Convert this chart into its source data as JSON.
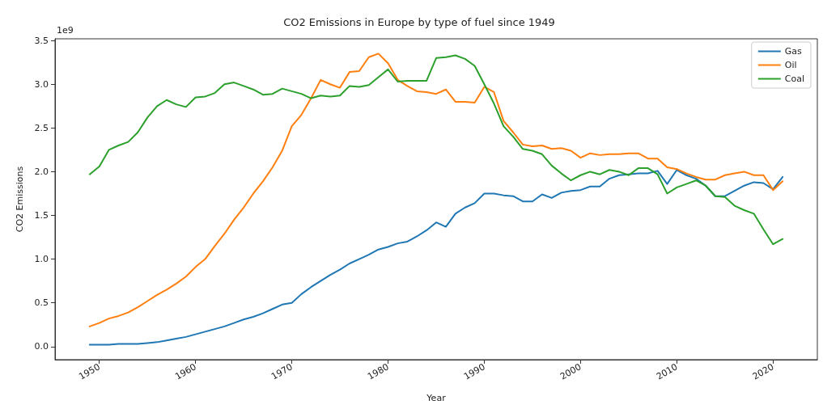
{
  "chart_data": {
    "type": "line",
    "title": "CO2 Emissions in Europe by type of fuel since 1949",
    "xlabel": "Year",
    "ylabel": "CO2 Emissions",
    "annotations": [
      "1e9"
    ],
    "x": [
      1949,
      1950,
      1951,
      1952,
      1953,
      1954,
      1955,
      1956,
      1957,
      1958,
      1959,
      1960,
      1961,
      1962,
      1963,
      1964,
      1965,
      1966,
      1967,
      1968,
      1969,
      1970,
      1971,
      1972,
      1973,
      1974,
      1975,
      1976,
      1977,
      1978,
      1979,
      1980,
      1981,
      1982,
      1983,
      1984,
      1985,
      1986,
      1987,
      1988,
      1989,
      1990,
      1991,
      1992,
      1993,
      1994,
      1995,
      1996,
      1997,
      1998,
      1999,
      2000,
      2001,
      2002,
      2003,
      2004,
      2005,
      2006,
      2007,
      2008,
      2009,
      2010,
      2011,
      2012,
      2013,
      2014,
      2015,
      2016,
      2017,
      2018,
      2019,
      2020,
      2021
    ],
    "series": [
      {
        "name": "Gas",
        "color": "#1f77b4",
        "values": [
          0.02,
          0.02,
          0.02,
          0.03,
          0.03,
          0.03,
          0.04,
          0.05,
          0.07,
          0.09,
          0.11,
          0.14,
          0.17,
          0.2,
          0.23,
          0.27,
          0.31,
          0.34,
          0.38,
          0.43,
          0.48,
          0.5,
          0.6,
          0.68,
          0.75,
          0.82,
          0.88,
          0.95,
          1.0,
          1.05,
          1.11,
          1.14,
          1.18,
          1.2,
          1.26,
          1.33,
          1.42,
          1.37,
          1.52,
          1.59,
          1.64,
          1.75,
          1.75,
          1.73,
          1.72,
          1.66,
          1.66,
          1.74,
          1.7,
          1.76,
          1.78,
          1.79,
          1.83,
          1.83,
          1.92,
          1.96,
          1.97,
          1.98,
          1.98,
          2.01,
          1.86,
          2.02,
          1.96,
          1.92,
          1.84,
          1.72,
          1.72,
          1.78,
          1.84,
          1.88,
          1.87,
          1.8,
          1.94
        ]
      },
      {
        "name": "Oil",
        "color": "#ff7f0e",
        "values": [
          0.23,
          0.27,
          0.32,
          0.35,
          0.39,
          0.45,
          0.52,
          0.59,
          0.65,
          0.72,
          0.8,
          0.91,
          1.0,
          1.15,
          1.29,
          1.45,
          1.59,
          1.75,
          1.89,
          2.05,
          2.24,
          2.52,
          2.65,
          2.84,
          3.05,
          3.0,
          2.96,
          3.14,
          3.15,
          3.31,
          3.35,
          3.24,
          3.05,
          2.98,
          2.92,
          2.91,
          2.89,
          2.94,
          2.8,
          2.8,
          2.79,
          2.97,
          2.91,
          2.58,
          2.45,
          2.31,
          2.29,
          2.3,
          2.26,
          2.27,
          2.24,
          2.16,
          2.21,
          2.19,
          2.2,
          2.2,
          2.21,
          2.21,
          2.15,
          2.15,
          2.05,
          2.03,
          1.98,
          1.94,
          1.91,
          1.91,
          1.96,
          1.98,
          2.0,
          1.96,
          1.96,
          1.79,
          1.89
        ]
      },
      {
        "name": "Coal",
        "color": "#2ca02c",
        "values": [
          1.97,
          2.06,
          2.25,
          2.3,
          2.34,
          2.45,
          2.62,
          2.75,
          2.82,
          2.77,
          2.74,
          2.85,
          2.86,
          2.9,
          3.0,
          3.02,
          2.98,
          2.94,
          2.88,
          2.89,
          2.95,
          2.92,
          2.89,
          2.84,
          2.87,
          2.86,
          2.87,
          2.98,
          2.97,
          2.99,
          3.08,
          3.17,
          3.03,
          3.04,
          3.04,
          3.04,
          3.3,
          3.31,
          3.33,
          3.29,
          3.21,
          3.0,
          2.78,
          2.52,
          2.4,
          2.26,
          2.24,
          2.2,
          2.07,
          1.98,
          1.9,
          1.96,
          2.0,
          1.97,
          2.02,
          2.0,
          1.96,
          2.04,
          2.04,
          1.97,
          1.75,
          1.82,
          1.86,
          1.9,
          1.84,
          1.72,
          1.71,
          1.61,
          1.56,
          1.52,
          1.34,
          1.17,
          1.23
        ]
      }
    ],
    "xlim": [
      1945.4,
      2024.6
    ],
    "xticks": [
      1950,
      1960,
      1970,
      1980,
      1990,
      2000,
      2010,
      2020
    ],
    "ylim": [
      -0.15,
      3.52
    ],
    "yticks": [
      {
        "value": 0,
        "label": "0.0"
      },
      {
        "value": 0.5,
        "label": "0.5"
      },
      {
        "value": 1,
        "label": "1.0"
      },
      {
        "value": 1.5,
        "label": "1.5"
      },
      {
        "value": 2,
        "label": "2.0"
      },
      {
        "value": 2.5,
        "label": "2.5"
      },
      {
        "value": 3,
        "label": "3.0"
      },
      {
        "value": 3.5,
        "label": "3.5"
      }
    ],
    "grid": false,
    "legend": "top right",
    "marker": "none",
    "line_style": "solid"
  }
}
